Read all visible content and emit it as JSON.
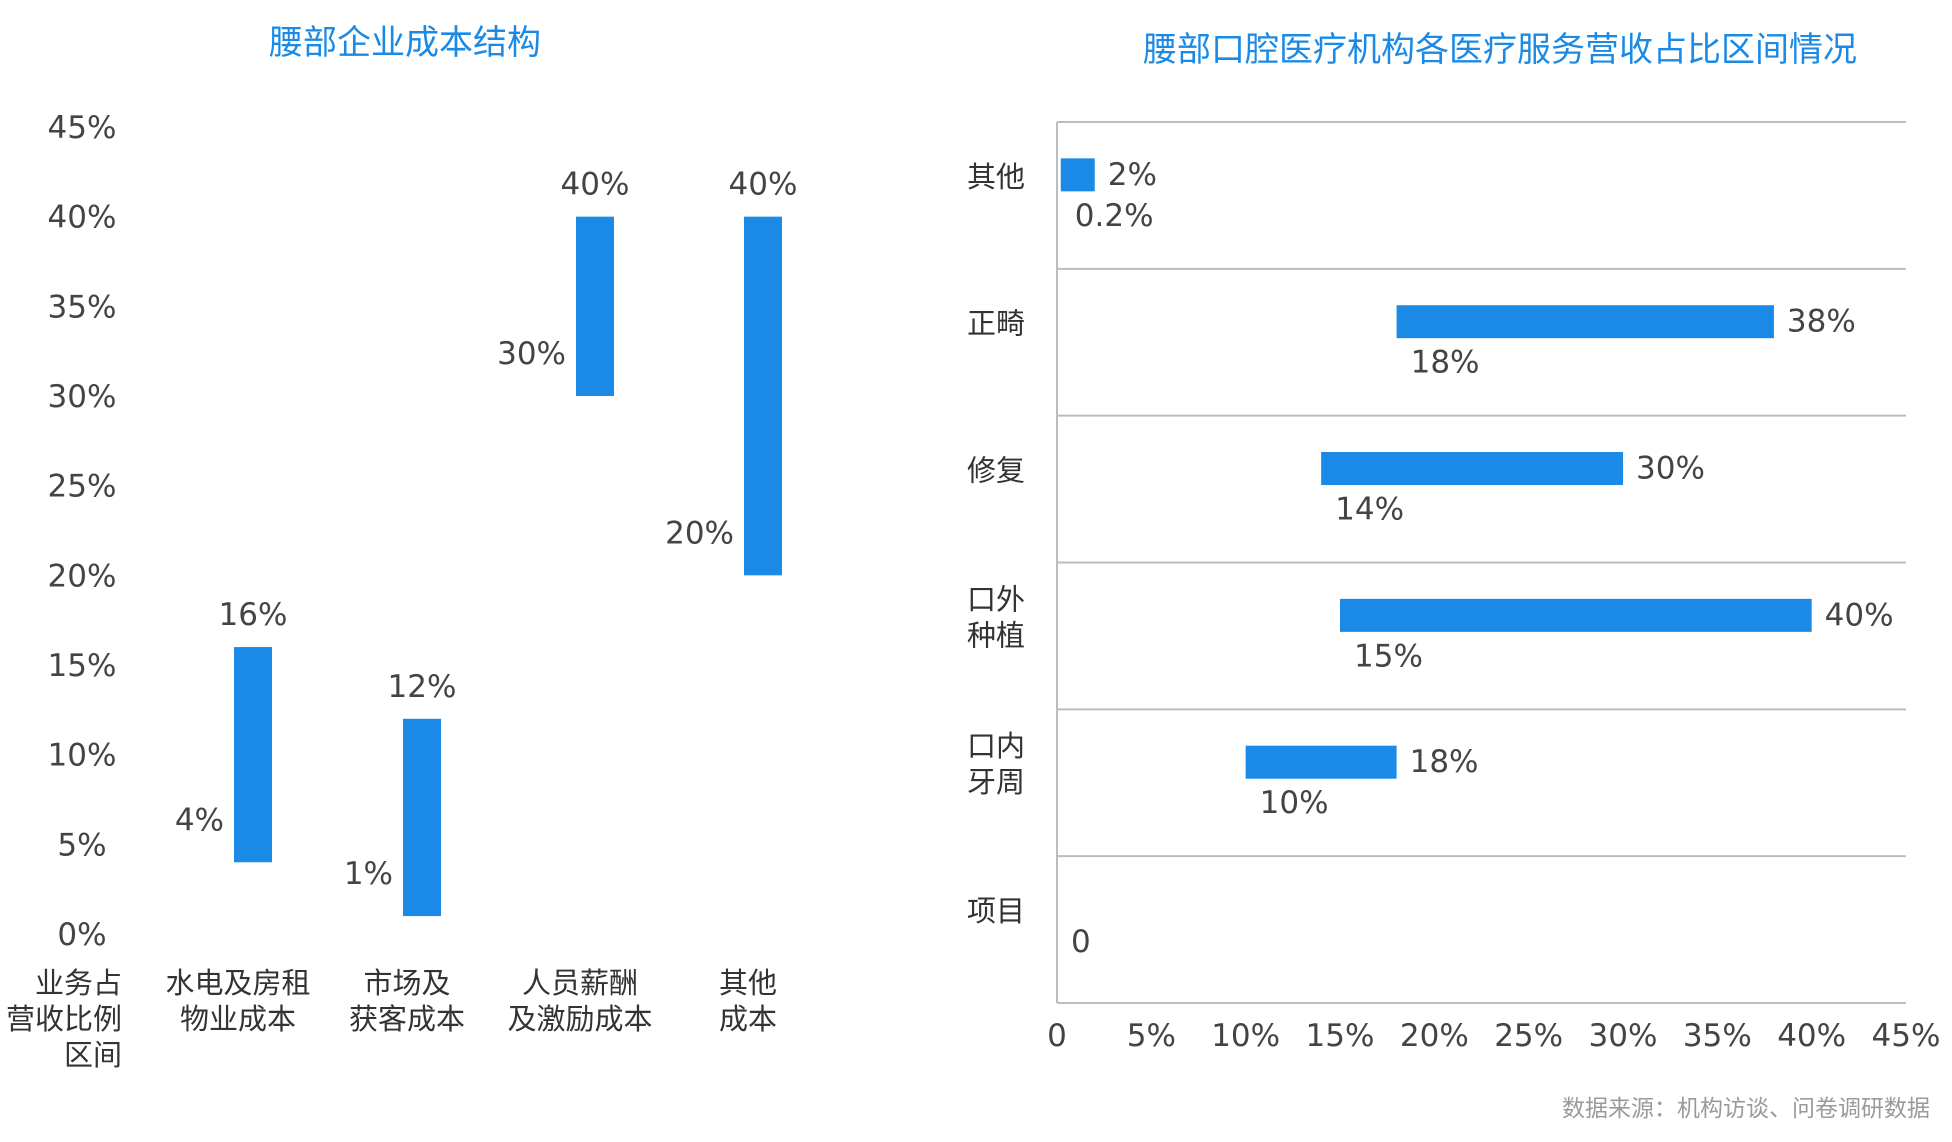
{
  "chart_data": [
    {
      "type": "bar",
      "subtype": "floating-range-vertical",
      "title": "腰部企业成本结构",
      "ylabel_lines": [
        "业务占",
        "营收比例",
        "区间"
      ],
      "ytick_labels": [
        "0%",
        "5%",
        "10%",
        "15%",
        "20%",
        "25%",
        "30%",
        "35%",
        "40%",
        "45%"
      ],
      "ylim": [
        0,
        45
      ],
      "bar_color": "#1a8ae6",
      "categories": [
        {
          "lines": [
            "水电及房租",
            "物业成本"
          ],
          "low": 4,
          "high": 16,
          "low_label": "4%",
          "high_label": "16%"
        },
        {
          "lines": [
            "市场及",
            "获客成本"
          ],
          "low": 1,
          "high": 12,
          "low_label": "1%",
          "high_label": "12%"
        },
        {
          "lines": [
            "人员薪酬",
            "及激励成本"
          ],
          "low": 30,
          "high": 40,
          "low_label": "30%",
          "high_label": "40%"
        },
        {
          "lines": [
            "其他",
            "成本"
          ],
          "low": 20,
          "high": 40,
          "low_label": "20%",
          "high_label": "40%"
        }
      ]
    },
    {
      "type": "bar",
      "subtype": "floating-range-horizontal",
      "title": "腰部口腔医疗机构各医疗服务营收占比区间情况",
      "xtick_labels": [
        "0",
        "5%",
        "10%",
        "15%",
        "20%",
        "25%",
        "30%",
        "35%",
        "40%",
        "45%"
      ],
      "xlim": [
        0,
        45
      ],
      "grid": true,
      "bar_color": "#1a8ae6",
      "categories": [
        {
          "lines": [
            "其他"
          ],
          "low": 0.2,
          "high": 2,
          "low_label": "0.2%",
          "high_label": "2%"
        },
        {
          "lines": [
            "正畸"
          ],
          "low": 18,
          "high": 38,
          "low_label": "18%",
          "high_label": "38%"
        },
        {
          "lines": [
            "修复"
          ],
          "low": 14,
          "high": 30,
          "low_label": "14%",
          "high_label": "30%"
        },
        {
          "lines": [
            "口外",
            "种植"
          ],
          "low": 15,
          "high": 40,
          "low_label": "15%",
          "high_label": "40%"
        },
        {
          "lines": [
            "口内",
            "牙周"
          ],
          "low": 10,
          "high": 18,
          "low_label": "10%",
          "high_label": "18%"
        },
        {
          "lines": [
            "项目"
          ],
          "low": null,
          "high": null,
          "low_label": "0",
          "high_label": ""
        }
      ]
    }
  ],
  "source_note": "数据来源：机构访谈、问卷调研数据"
}
